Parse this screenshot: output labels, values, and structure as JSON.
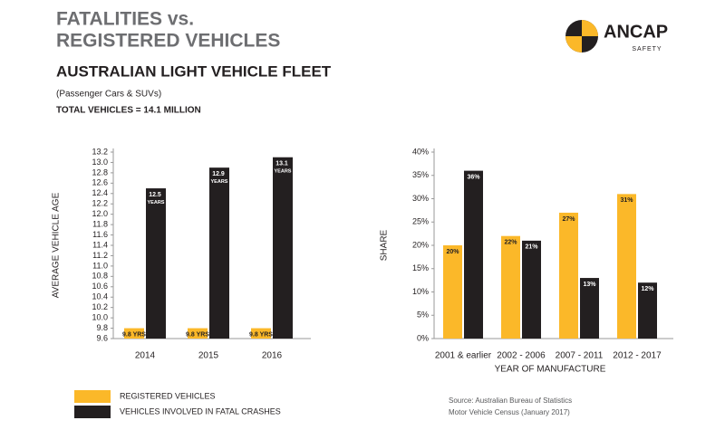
{
  "header": {
    "title_line1": "FATALITIES vs.",
    "title_line2": "REGISTERED VEHICLES",
    "subtitle": "AUSTRALIAN LIGHT VEHICLE FLEET",
    "note": "(Passenger Cars & SUVs)",
    "total": "TOTAL VEHICLES = 14.1 MILLION"
  },
  "logo": {
    "name": "ANCAP",
    "tagline": "SAFETY"
  },
  "source": [
    "Source: Australian Bureau of Statistics",
    "Motor Vehicle Census (January 2017)"
  ],
  "chart_data": [
    {
      "type": "bar",
      "y_label": "AVERAGE VEHICLE AGE",
      "categories": [
        "2014",
        "2015",
        "2016"
      ],
      "series": [
        {
          "name": "REGISTERED VEHICLES",
          "color": "#fbb829",
          "values": [
            9.8,
            9.8,
            9.8
          ],
          "value_labels": [
            "9.8 YRS",
            "9.8 YRS",
            "9.8 YRS"
          ]
        },
        {
          "name": "VEHICLES INVOLVED IN FATAL CRASHES",
          "color": "#231f20",
          "values": [
            12.5,
            12.9,
            13.1
          ],
          "value_labels": [
            "12.5 YEARS",
            "12.9 YEARS",
            "13.1 YEARS"
          ]
        }
      ],
      "ylim": [
        9.6,
        13.2
      ],
      "yticks": [
        9.6,
        9.8,
        {
          "value": 10,
          "label": "10.0"
        },
        10.2,
        10.4,
        10.6,
        10.8,
        {
          "value": 11,
          "label": "11.0"
        },
        11.2,
        11.4,
        11.6,
        11.8,
        {
          "value": 12,
          "label": "12.0"
        },
        12.2,
        12.4,
        12.6,
        12.8,
        {
          "value": 13,
          "label": "13.0"
        },
        13.2
      ],
      "grid": false
    },
    {
      "type": "bar",
      "x_label": "YEAR OF MANUFACTURE",
      "y_label": "SHARE",
      "categories": [
        "2001 & earlier",
        "2002 - 2006",
        "2007 - 2011",
        "2012 - 2017"
      ],
      "series": [
        {
          "name": "REGISTERED VEHICLES",
          "color": "#fbb829",
          "values": [
            20,
            22,
            27,
            31
          ],
          "value_labels": [
            "20%",
            "22%",
            "27%",
            "31%"
          ]
        },
        {
          "name": "VEHICLES INVOLVED IN FATAL CRASHES",
          "color": "#231f20",
          "values": [
            36,
            21,
            13,
            12
          ],
          "value_labels": [
            "36%",
            "21%",
            "13%",
            "12%"
          ]
        }
      ],
      "ylim": [
        0,
        40
      ],
      "yticks": [
        {
          "value": 0,
          "label": "0%"
        },
        {
          "value": 5,
          "label": "5%"
        },
        {
          "value": 10,
          "label": "10%"
        },
        {
          "value": 15,
          "label": "15%"
        },
        {
          "value": 20,
          "label": "20%"
        },
        {
          "value": 25,
          "label": "25%"
        },
        {
          "value": 30,
          "label": "30%"
        },
        {
          "value": 35,
          "label": "35%"
        },
        {
          "value": 40,
          "label": "40%"
        }
      ],
      "grid": false
    }
  ]
}
